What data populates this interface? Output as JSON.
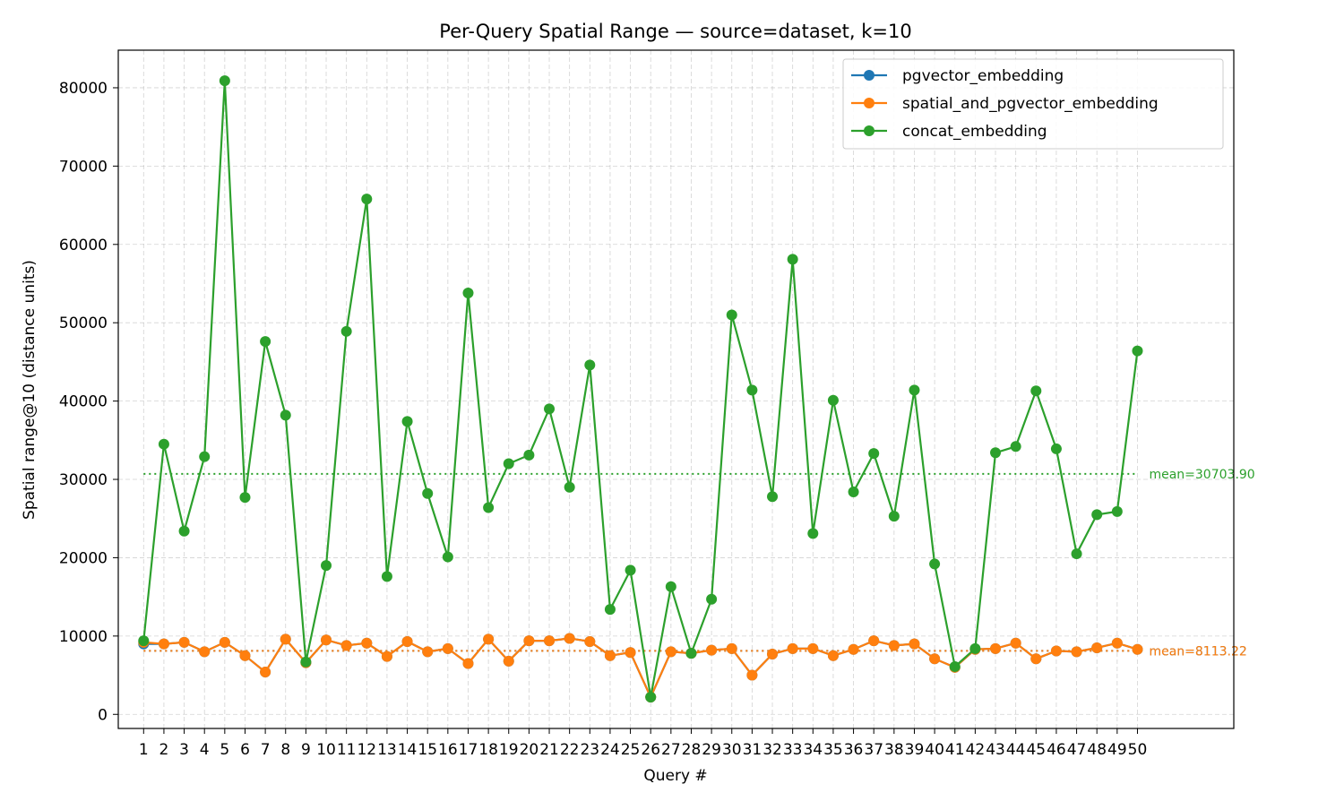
{
  "chart_data": {
    "type": "line",
    "title": "Per-Query Spatial Range — source=dataset, k=10",
    "xlabel": "Query #",
    "ylabel": "Spatial range@10 (distance units)",
    "x": [
      1,
      2,
      3,
      4,
      5,
      6,
      7,
      8,
      9,
      10,
      11,
      12,
      13,
      14,
      15,
      16,
      17,
      18,
      19,
      20,
      21,
      22,
      23,
      24,
      25,
      26,
      27,
      28,
      29,
      30,
      31,
      32,
      33,
      34,
      35,
      36,
      37,
      38,
      39,
      40,
      41,
      42,
      43,
      44,
      45,
      46,
      47,
      48,
      49,
      50
    ],
    "xlim": [
      -0.25,
      54.75
    ],
    "ylim": [
      -1800,
      84800
    ],
    "yticks": [
      0,
      10000,
      20000,
      30000,
      40000,
      50000,
      60000,
      70000,
      80000
    ],
    "grid": true,
    "legend_position": "top-right",
    "series": [
      {
        "name": "pgvector_embedding",
        "color": "#1f77b4",
        "values": [
          9000,
          9000,
          9200,
          8000,
          9200,
          7500,
          5400,
          9600,
          6600,
          9500,
          8800,
          9100,
          7400,
          9300,
          8000,
          8400,
          6500,
          9600,
          6800,
          9400,
          9400,
          9700,
          9300,
          7500,
          7900,
          2200,
          8000,
          7800,
          8200,
          8400,
          5000,
          7700,
          8400,
          8400,
          7500,
          8300,
          9400,
          8800,
          9000,
          7100,
          6000,
          8300,
          8400,
          9100,
          7100,
          8100,
          8000,
          8500,
          9100,
          8300
        ],
        "mean": 8113.22,
        "mean_label": "mean=8113.22"
      },
      {
        "name": "spatial_and_pgvector_embedding",
        "color": "#ff7f0e",
        "values": [
          9200,
          9000,
          9200,
          8000,
          9200,
          7500,
          5400,
          9600,
          6600,
          9500,
          8800,
          9100,
          7400,
          9300,
          8000,
          8400,
          6500,
          9600,
          6800,
          9400,
          9400,
          9700,
          9300,
          7500,
          7900,
          2200,
          8000,
          7800,
          8200,
          8400,
          5000,
          7700,
          8400,
          8400,
          7500,
          8300,
          9400,
          8800,
          9000,
          7100,
          6000,
          8300,
          8400,
          9100,
          7100,
          8100,
          8000,
          8500,
          9100,
          8300
        ],
        "mean": 8113.22,
        "mean_label": "mean=8113.22"
      },
      {
        "name": "concat_embedding",
        "color": "#2ca02c",
        "values": [
          9400,
          34500,
          23400,
          32900,
          80900,
          27700,
          47600,
          38200,
          6700,
          19000,
          48900,
          65800,
          17600,
          37400,
          28200,
          20100,
          53800,
          26400,
          32000,
          33100,
          39000,
          29000,
          44600,
          13400,
          18400,
          2200,
          16300,
          7800,
          14700,
          51000,
          41400,
          27800,
          58100,
          23100,
          40100,
          28400,
          33300,
          25300,
          41400,
          19200,
          6100,
          8400,
          33400,
          34200,
          41300,
          33900,
          20500,
          25500,
          25900,
          46400
        ],
        "mean": 30703.9,
        "mean_label": "mean=30703.90"
      }
    ]
  }
}
